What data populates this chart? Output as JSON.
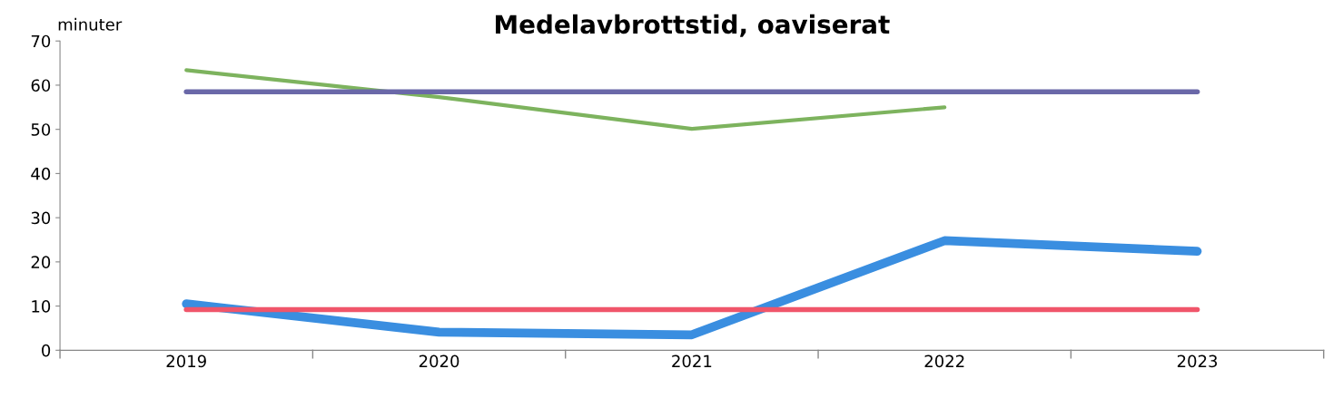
{
  "chart_data": {
    "type": "line",
    "title": "Medelavbrottstid, oaviserat",
    "ylabel": "minuter",
    "categories": [
      "2019",
      "2020",
      "2021",
      "2022",
      "2023"
    ],
    "series": [
      {
        "color": "#7db35e",
        "values": [
          63.4,
          57.3,
          50.1,
          55.0,
          null
        ]
      },
      {
        "color": "#6a68a8",
        "values": [
          58.5,
          58.5,
          58.5,
          58.5,
          58.5
        ]
      },
      {
        "color": "#3a8ee0",
        "values": [
          10.5,
          4.1,
          3.5,
          24.8,
          22.4
        ]
      },
      {
        "color": "#f0556a",
        "values": [
          9.2,
          9.2,
          9.2,
          9.2,
          9.2
        ]
      }
    ],
    "ylim": [
      0,
      70
    ],
    "yticks": [
      0,
      10,
      20,
      30,
      40,
      50,
      60,
      70
    ],
    "grid": false,
    "legend": false,
    "marker": "none"
  }
}
